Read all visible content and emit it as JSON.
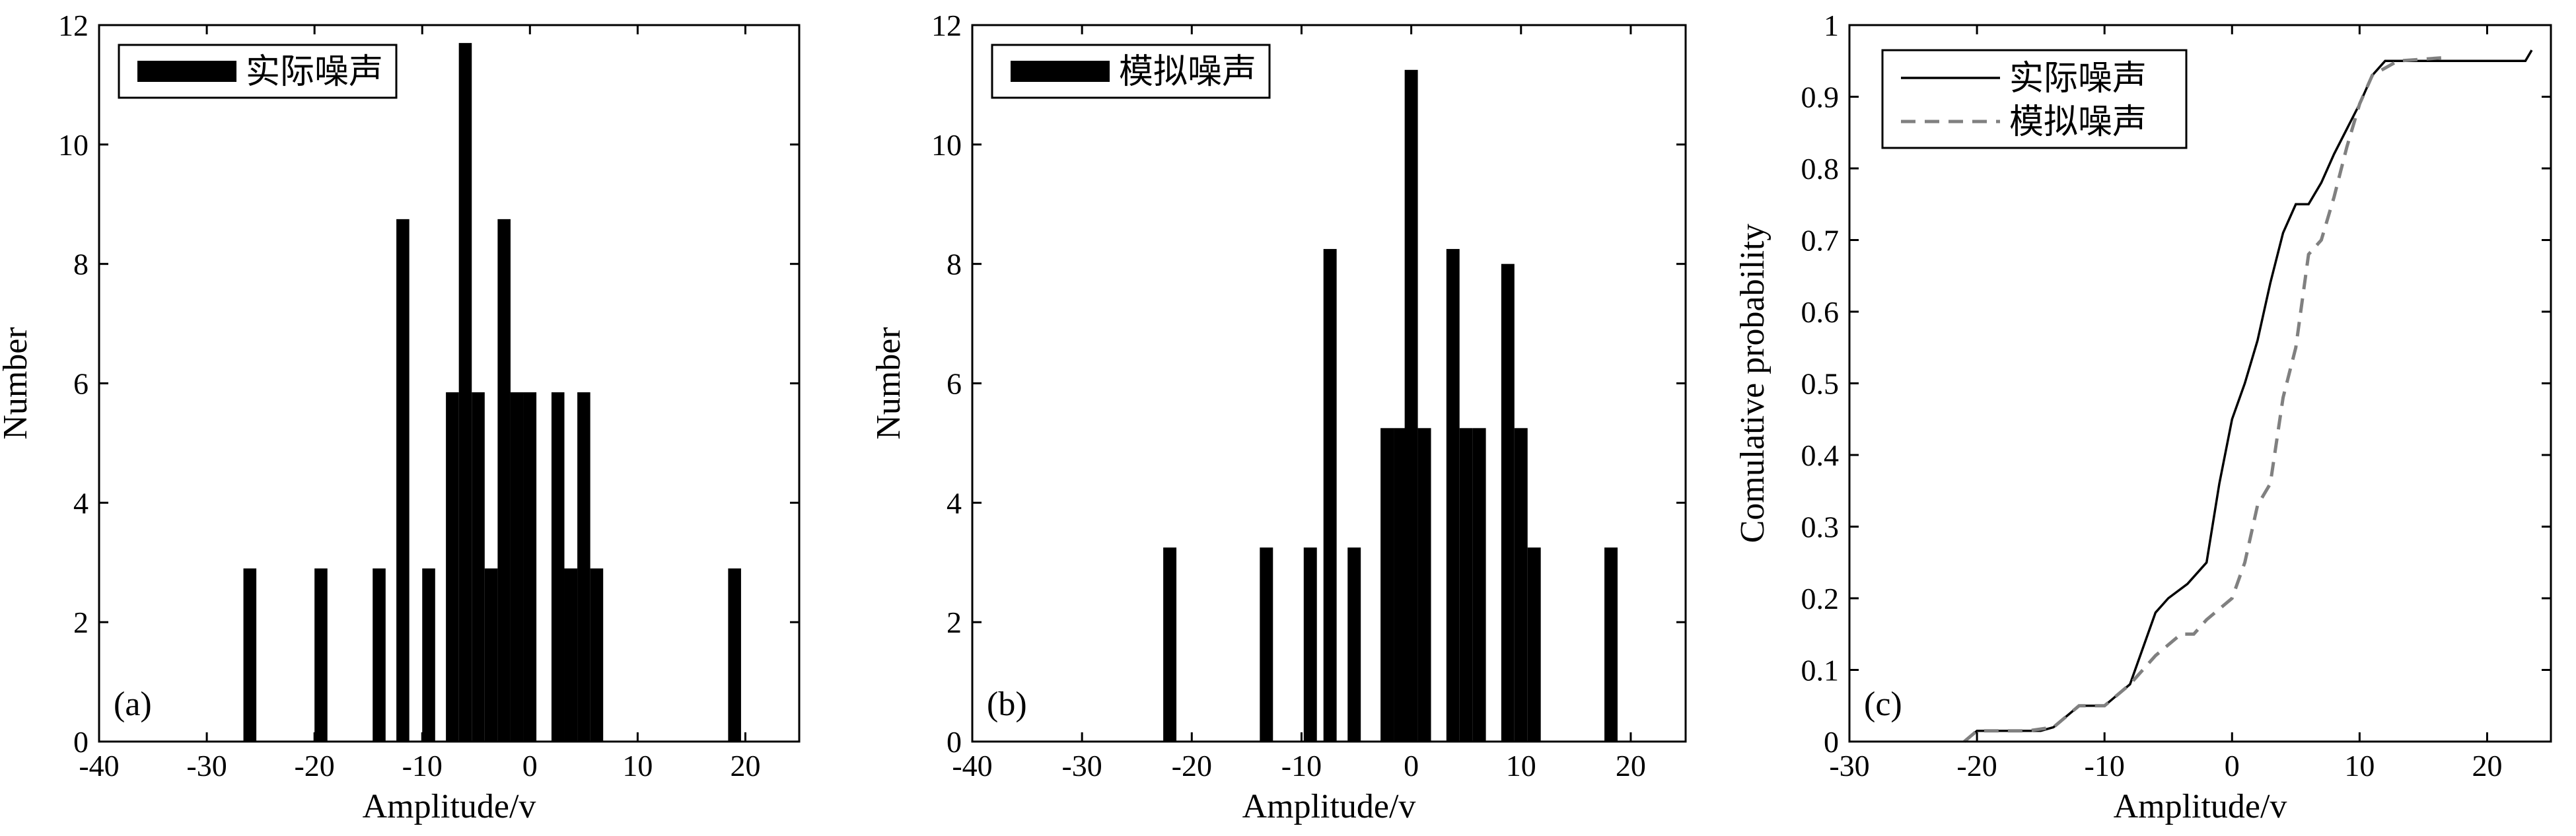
{
  "chart_data": [
    {
      "id": "a",
      "type": "bar",
      "panel_label": "(a)",
      "xlabel": "Amplitude/v",
      "ylabel": "Number",
      "xlim": [
        -40,
        25
      ],
      "ylim": [
        0,
        12
      ],
      "xticks": [
        -40,
        -30,
        -20,
        -10,
        0,
        10,
        20
      ],
      "yticks": [
        0,
        2,
        4,
        6,
        8,
        10,
        12
      ],
      "bar_width": 1.2,
      "bar_color": "#000000",
      "legend": {
        "placement": "top-left",
        "entries": [
          {
            "label": "实际噪声",
            "style": "bar"
          }
        ]
      },
      "bars": [
        {
          "x": -26.0,
          "y": 2.9
        },
        {
          "x": -19.4,
          "y": 2.9
        },
        {
          "x": -14.0,
          "y": 2.9
        },
        {
          "x": -11.8,
          "y": 8.75
        },
        {
          "x": -9.4,
          "y": 2.9
        },
        {
          "x": -7.2,
          "y": 5.85
        },
        {
          "x": -6.0,
          "y": 11.7
        },
        {
          "x": -4.8,
          "y": 5.85
        },
        {
          "x": -3.6,
          "y": 2.9
        },
        {
          "x": -2.4,
          "y": 8.75
        },
        {
          "x": -1.2,
          "y": 5.85
        },
        {
          "x": 0.0,
          "y": 5.85
        },
        {
          "x": 2.6,
          "y": 5.85
        },
        {
          "x": 3.8,
          "y": 2.9
        },
        {
          "x": 5.0,
          "y": 5.85
        },
        {
          "x": 6.2,
          "y": 2.9
        },
        {
          "x": 19.0,
          "y": 2.9
        }
      ]
    },
    {
      "id": "b",
      "type": "bar",
      "panel_label": "(b)",
      "xlabel": "Amplitude/v",
      "ylabel": "Number",
      "xlim": [
        -40,
        25
      ],
      "ylim": [
        0,
        12
      ],
      "xticks": [
        -40,
        -30,
        -20,
        -10,
        0,
        10,
        20
      ],
      "yticks": [
        0,
        2,
        4,
        6,
        8,
        10,
        12
      ],
      "bar_width": 1.2,
      "bar_color": "#000000",
      "legend": {
        "placement": "top-left",
        "entries": [
          {
            "label": "模拟噪声",
            "style": "bar"
          }
        ]
      },
      "bars": [
        {
          "x": -22.0,
          "y": 3.25
        },
        {
          "x": -13.2,
          "y": 3.25
        },
        {
          "x": -9.2,
          "y": 3.25
        },
        {
          "x": -7.4,
          "y": 8.25
        },
        {
          "x": -5.2,
          "y": 3.25
        },
        {
          "x": -2.2,
          "y": 5.25
        },
        {
          "x": -1.0,
          "y": 5.25
        },
        {
          "x": 0.0,
          "y": 11.25
        },
        {
          "x": 1.2,
          "y": 5.25
        },
        {
          "x": 3.8,
          "y": 8.25
        },
        {
          "x": 5.0,
          "y": 5.25
        },
        {
          "x": 6.2,
          "y": 5.25
        },
        {
          "x": 8.8,
          "y": 8.0
        },
        {
          "x": 10.0,
          "y": 5.25
        },
        {
          "x": 11.2,
          "y": 3.25
        },
        {
          "x": 18.2,
          "y": 3.25
        }
      ]
    },
    {
      "id": "c",
      "type": "line",
      "panel_label": "(c)",
      "xlabel": "Amplitude/v",
      "ylabel": "Comulative probability",
      "xlim": [
        -30,
        25
      ],
      "ylim": [
        0,
        1
      ],
      "xticks": [
        -30,
        -20,
        -10,
        0,
        10,
        20
      ],
      "yticks": [
        0,
        0.1,
        0.2,
        0.3,
        0.4,
        0.5,
        0.6,
        0.7,
        0.8,
        0.9,
        1
      ],
      "legend": {
        "placement": "top-left"
      },
      "series": [
        {
          "name": "实际噪声",
          "color": "#000000",
          "dash": "solid",
          "points": [
            [
              -21,
              0.0
            ],
            [
              -20,
              0.015
            ],
            [
              -15,
              0.015
            ],
            [
              -14,
              0.02
            ],
            [
              -12,
              0.05
            ],
            [
              -10,
              0.05
            ],
            [
              -8,
              0.08
            ],
            [
              -6,
              0.18
            ],
            [
              -5,
              0.2
            ],
            [
              -3.5,
              0.22
            ],
            [
              -2,
              0.25
            ],
            [
              -1,
              0.36
            ],
            [
              0,
              0.45
            ],
            [
              1,
              0.5
            ],
            [
              2,
              0.56
            ],
            [
              3,
              0.64
            ],
            [
              4,
              0.71
            ],
            [
              5,
              0.75
            ],
            [
              6,
              0.75
            ],
            [
              7,
              0.78
            ],
            [
              8,
              0.82
            ],
            [
              10,
              0.89
            ],
            [
              11,
              0.93
            ],
            [
              12,
              0.95
            ],
            [
              23,
              0.95
            ],
            [
              23.5,
              0.965
            ]
          ]
        },
        {
          "name": "模拟噪声",
          "color": "#808080",
          "dash": "dashed",
          "points": [
            [
              -21,
              0.0
            ],
            [
              -20,
              0.015
            ],
            [
              -16,
              0.015
            ],
            [
              -14,
              0.02
            ],
            [
              -12,
              0.05
            ],
            [
              -10,
              0.05
            ],
            [
              -8,
              0.08
            ],
            [
              -6,
              0.12
            ],
            [
              -4,
              0.15
            ],
            [
              -3,
              0.15
            ],
            [
              -2,
              0.17
            ],
            [
              0,
              0.2
            ],
            [
              1,
              0.25
            ],
            [
              2,
              0.33
            ],
            [
              3,
              0.36
            ],
            [
              4,
              0.48
            ],
            [
              5,
              0.55
            ],
            [
              6,
              0.68
            ],
            [
              7,
              0.7
            ],
            [
              8,
              0.76
            ],
            [
              9,
              0.83
            ],
            [
              10,
              0.89
            ],
            [
              11,
              0.93
            ],
            [
              13,
              0.95
            ],
            [
              17,
              0.955
            ]
          ]
        }
      ]
    }
  ]
}
